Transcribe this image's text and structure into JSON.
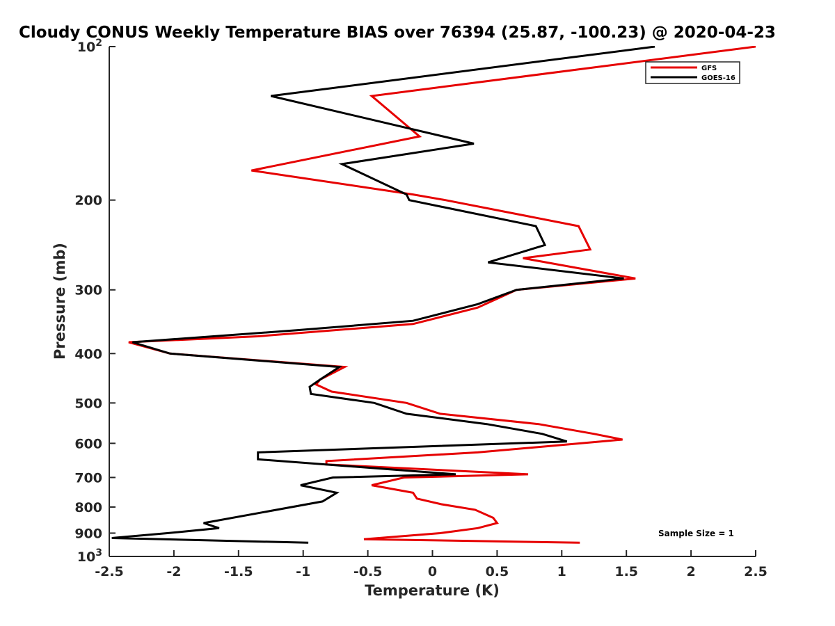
{
  "chart_data": {
    "type": "line",
    "title": "Cloudy CONUS Weekly Temperature BIAS over 76394 (25.87, -100.23) @ 2020-04-23",
    "xlabel": "Temperature (K)",
    "ylabel": "Pressure (mb)",
    "xlim": [
      -2.5,
      2.5
    ],
    "ylim": [
      100,
      1000
    ],
    "yscale": "log",
    "y_reversed": true,
    "x_ticks": [
      "-2.5",
      "-2",
      "-1.5",
      "-1",
      "-0.5",
      "0",
      "0.5",
      "1",
      "1.5",
      "2",
      "2.5"
    ],
    "y_ticks": [
      {
        "value": 100,
        "base": "10",
        "exp": "2"
      },
      {
        "value": 200,
        "label": "200"
      },
      {
        "value": 300,
        "label": "300"
      },
      {
        "value": 400,
        "label": "400"
      },
      {
        "value": 500,
        "label": "500"
      },
      {
        "value": 600,
        "label": "600"
      },
      {
        "value": 700,
        "label": "700"
      },
      {
        "value": 800,
        "label": "800"
      },
      {
        "value": 900,
        "label": "900"
      },
      {
        "value": 1000,
        "base": "10",
        "exp": "3"
      }
    ],
    "grid": false,
    "legend_position": "top-right",
    "annotation": "Sample Size = 1",
    "series": [
      {
        "name": "GFS",
        "color": "#e60000",
        "points": [
          [
            2.5,
            100
          ],
          [
            -0.47,
            125
          ],
          [
            -0.1,
            150
          ],
          [
            -1.4,
            175
          ],
          [
            -0.15,
            195
          ],
          [
            0.1,
            200
          ],
          [
            1.13,
            225
          ],
          [
            1.22,
            250
          ],
          [
            0.7,
            260
          ],
          [
            1.57,
            285
          ],
          [
            0.65,
            300
          ],
          [
            0.35,
            325
          ],
          [
            -0.15,
            350
          ],
          [
            -1.35,
            370
          ],
          [
            -2.35,
            380
          ],
          [
            -2.03,
            400
          ],
          [
            -0.68,
            425
          ],
          [
            -0.87,
            450
          ],
          [
            -0.9,
            460
          ],
          [
            -0.78,
            475
          ],
          [
            -0.2,
            500
          ],
          [
            0.06,
            525
          ],
          [
            0.82,
            550
          ],
          [
            1.25,
            575
          ],
          [
            1.47,
            590
          ],
          [
            0.35,
            625
          ],
          [
            -0.82,
            650
          ],
          [
            -0.82,
            660
          ],
          [
            0.74,
            690
          ],
          [
            -0.22,
            700
          ],
          [
            -0.47,
            725
          ],
          [
            -0.15,
            750
          ],
          [
            -0.12,
            770
          ],
          [
            0.07,
            790
          ],
          [
            0.33,
            810
          ],
          [
            0.47,
            840
          ],
          [
            0.5,
            860
          ],
          [
            0.35,
            880
          ],
          [
            0.06,
            900
          ],
          [
            -0.53,
            925
          ],
          [
            1.14,
            940
          ]
        ]
      },
      {
        "name": "GOES-16",
        "color": "#000000",
        "points": [
          [
            1.72,
            100
          ],
          [
            -1.25,
            125
          ],
          [
            0.32,
            155
          ],
          [
            -0.7,
            170
          ],
          [
            -0.2,
            195
          ],
          [
            -0.18,
            200
          ],
          [
            0.8,
            225
          ],
          [
            0.87,
            245
          ],
          [
            0.43,
            265
          ],
          [
            1.48,
            285
          ],
          [
            0.65,
            300
          ],
          [
            0.35,
            320
          ],
          [
            -0.15,
            345
          ],
          [
            -1.05,
            360
          ],
          [
            -2.32,
            380
          ],
          [
            -2.03,
            400
          ],
          [
            -0.72,
            425
          ],
          [
            -0.87,
            450
          ],
          [
            -0.95,
            465
          ],
          [
            -0.94,
            480
          ],
          [
            -0.45,
            500
          ],
          [
            -0.2,
            525
          ],
          [
            0.42,
            550
          ],
          [
            0.85,
            575
          ],
          [
            1.04,
            595
          ],
          [
            -1.35,
            625
          ],
          [
            -1.35,
            645
          ],
          [
            0.18,
            690
          ],
          [
            -0.77,
            700
          ],
          [
            -1.02,
            725
          ],
          [
            -0.74,
            750
          ],
          [
            -0.85,
            780
          ],
          [
            -1.77,
            860
          ],
          [
            -1.65,
            880
          ],
          [
            -2.05,
            900
          ],
          [
            -2.48,
            920
          ],
          [
            -0.96,
            940
          ]
        ]
      }
    ]
  }
}
